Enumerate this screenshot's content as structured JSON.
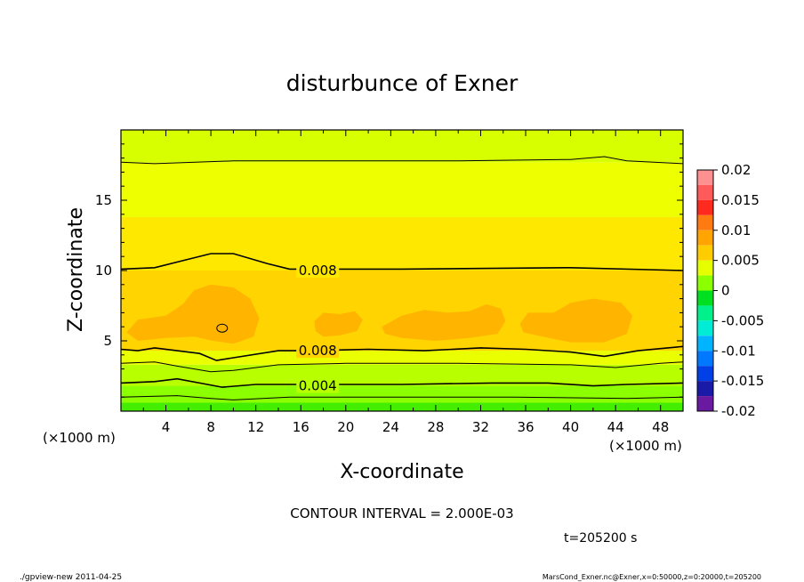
{
  "chart_data": {
    "type": "heatmap",
    "title": "disturbunce of Exner",
    "xlabel": "X-coordinate",
    "ylabel": "Z-coordinate",
    "x_unit_label": "(×1000 m)",
    "y_unit_label": "(×1000 m)",
    "xlim": [
      0,
      50
    ],
    "ylim": [
      0,
      20
    ],
    "x_ticks": [
      4,
      8,
      12,
      16,
      20,
      24,
      28,
      32,
      36,
      40,
      44,
      48
    ],
    "y_ticks": [
      5,
      10,
      15
    ],
    "contour_labels": [
      {
        "text": "0.008",
        "x": 17.5,
        "z": 10.0
      },
      {
        "text": "0.008",
        "x": 17.5,
        "z": 4.3
      },
      {
        "text": "0.004",
        "x": 17.5,
        "z": 1.8
      }
    ],
    "contour_interval_text": "CONTOUR INTERVAL = 2.000E-03",
    "time_text": "t=205200 s",
    "colorbar": {
      "ticks": [
        "0.02",
        "0.015",
        "0.01",
        "0.005",
        "0",
        "-0.005",
        "-0.01",
        "-0.015",
        "-0.02"
      ],
      "levels": [
        {
          "lo": 0.0175,
          "hi": 0.02,
          "color": "#ff9090"
        },
        {
          "lo": 0.015,
          "hi": 0.0175,
          "color": "#ff5a5a"
        },
        {
          "lo": 0.0125,
          "hi": 0.015,
          "color": "#ff2a1e"
        },
        {
          "lo": 0.01,
          "hi": 0.0125,
          "color": "#ff7a10"
        },
        {
          "lo": 0.0075,
          "hi": 0.01,
          "color": "#ffa400"
        },
        {
          "lo": 0.005,
          "hi": 0.0075,
          "color": "#ffcc00"
        },
        {
          "lo": 0.0025,
          "hi": 0.005,
          "color": "#e6ff00"
        },
        {
          "lo": 0.0,
          "hi": 0.0025,
          "color": "#8cff00"
        },
        {
          "lo": -0.0025,
          "hi": 0.0,
          "color": "#00e020"
        },
        {
          "lo": -0.005,
          "hi": -0.0025,
          "color": "#00f08c"
        },
        {
          "lo": -0.0075,
          "hi": -0.005,
          "color": "#00ecd6"
        },
        {
          "lo": -0.01,
          "hi": -0.0075,
          "color": "#00b4ff"
        },
        {
          "lo": -0.0125,
          "hi": -0.01,
          "color": "#0078ff"
        },
        {
          "lo": -0.015,
          "hi": -0.0125,
          "color": "#0040e6"
        },
        {
          "lo": -0.0175,
          "hi": -0.015,
          "color": "#1a1aa8"
        },
        {
          "lo": -0.02,
          "hi": -0.0175,
          "color": "#6a1aa0"
        }
      ]
    },
    "bands": [
      {
        "z0": 0.0,
        "z1": 0.6,
        "color": "#44ee00"
      },
      {
        "z0": 0.6,
        "z1": 1.8,
        "color": "#8cff00"
      },
      {
        "z0": 1.8,
        "z1": 3.3,
        "color": "#b8ff00"
      },
      {
        "z0": 3.3,
        "z1": 4.3,
        "color": "#eaff00"
      },
      {
        "z0": 4.3,
        "z1": 10.0,
        "color": "#ffd400"
      },
      {
        "z0": 10.0,
        "z1": 13.8,
        "color": "#ffe800"
      },
      {
        "z0": 13.8,
        "z1": 17.7,
        "color": "#eeff00"
      },
      {
        "z0": 17.7,
        "z1": 20.0,
        "color": "#d8ff00"
      }
    ],
    "blob_color": "#ffb400",
    "footer_left": "./gpview-new  2011-04-25",
    "footer_right": "MarsCond_Exner.nc@Exner,x=0:50000,z=0:20000,t=205200"
  }
}
